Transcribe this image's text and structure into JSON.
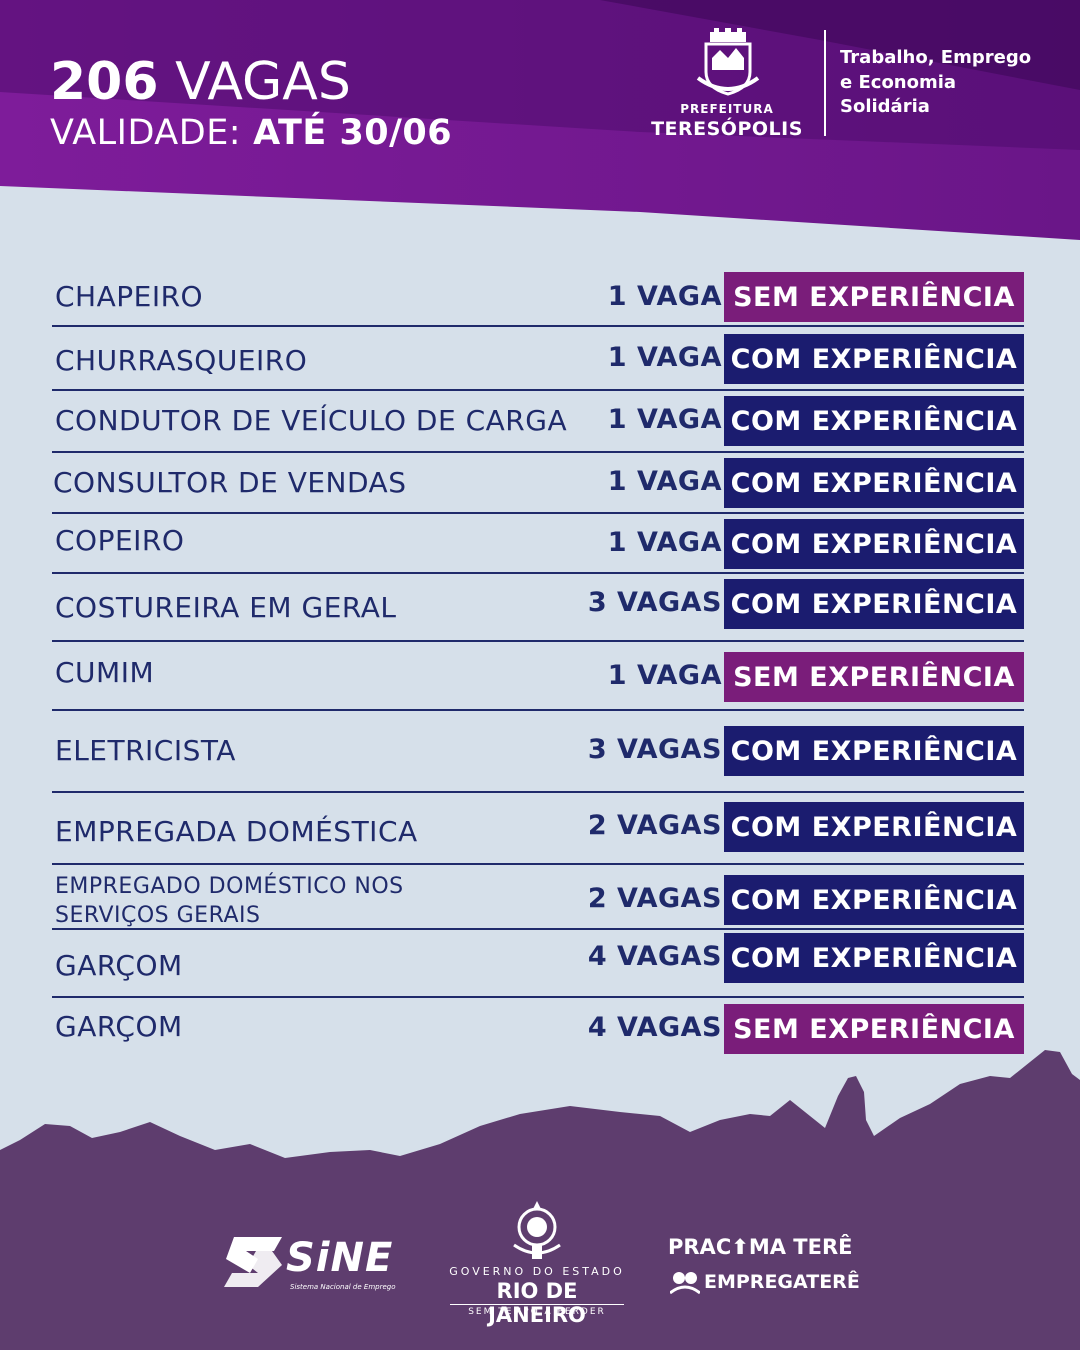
{
  "header": {
    "count": "206",
    "vagas_word": "VAGAS",
    "validade_label": "VALIDADE:",
    "validade_value": "ATÉ 30/06",
    "prefeitura_line1": "PREFEITURA",
    "prefeitura_line2": "TERESÓPOLIS",
    "secretaria_line1": "Trabalho, Emprego",
    "secretaria_line2": "e Economia",
    "secretaria_line3": "Solidária"
  },
  "jobs": [
    {
      "title": "CHAPEIRO",
      "qty": "1 VAGA",
      "tag": "SEM EXPERIÊNCIA",
      "tag_type": "sem"
    },
    {
      "title": "CHURRASQUEIRO",
      "qty": "1 VAGA",
      "tag": "COM EXPERIÊNCIA",
      "tag_type": "com"
    },
    {
      "title": "CONDUTOR DE VEÍCULO DE CARGA",
      "qty": "1 VAGA",
      "tag": "COM EXPERIÊNCIA",
      "tag_type": "com"
    },
    {
      "title": "CONSULTOR DE VENDAS",
      "qty": "1 VAGA",
      "tag": "COM EXPERIÊNCIA",
      "tag_type": "com"
    },
    {
      "title": "COPEIRO",
      "qty": "1 VAGA",
      "tag": "COM EXPERIÊNCIA",
      "tag_type": "com"
    },
    {
      "title": "COSTUREIRA EM GERAL",
      "qty": "3 VAGAS",
      "tag": "COM EXPERIÊNCIA",
      "tag_type": "com"
    },
    {
      "title": "CUMIM",
      "qty": "1 VAGA",
      "tag": "SEM EXPERIÊNCIA",
      "tag_type": "sem"
    },
    {
      "title": "ELETRICISTA",
      "qty": "3 VAGAS",
      "tag": "COM EXPERIÊNCIA",
      "tag_type": "com"
    },
    {
      "title": "EMPREGADA  DOMÉSTICA",
      "qty": "2 VAGAS",
      "tag": "COM EXPERIÊNCIA",
      "tag_type": "com"
    },
    {
      "title_line1": "EMPREGADO DOMÉSTICO NOS",
      "title_line2": "SERVIÇOS GERAIS",
      "qty": "2 VAGAS",
      "tag": "COM EXPERIÊNCIA",
      "tag_type": "com"
    },
    {
      "title": "GARÇOM",
      "qty": "4 VAGAS",
      "tag": "COM EXPERIÊNCIA",
      "tag_type": "com"
    },
    {
      "title": "GARÇOM",
      "qty": "4 VAGAS",
      "tag": "SEM EXPERIÊNCIA",
      "tag_type": "sem"
    }
  ],
  "footer": {
    "sine_word": "SiNE",
    "sine_sub": "Sistema Nacional de Emprego",
    "gov_line1": "GOVERNO DO ESTADO",
    "gov_line2": "RIO DE JANEIRO",
    "gov_line3": "SEM TEMPO A PERDER",
    "praca": "PRAC⬆MA TERÊ",
    "empregatere": "EMPREGATERÊ"
  },
  "colors": {
    "purple_dark": "#4e0d6e",
    "purple_header": "#7a1a96",
    "tag_sem": "#7a1d7a",
    "tag_com": "#1b1c6f",
    "text_navy": "#1f2a6b",
    "background": "#d6e0ea",
    "mountain": "#5e3d6e"
  }
}
